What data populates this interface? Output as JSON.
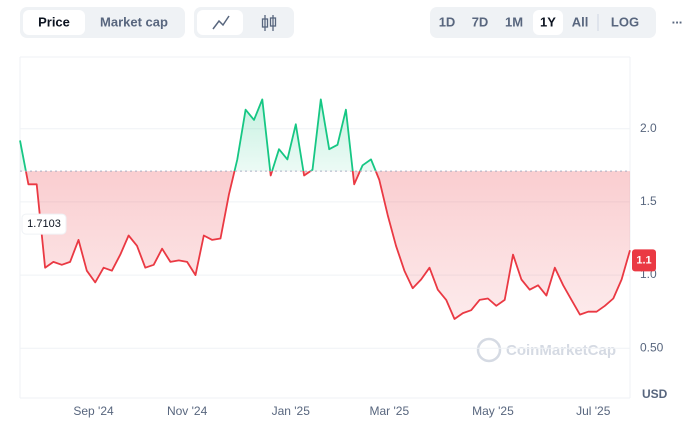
{
  "controls": {
    "view": [
      "Price",
      "Market cap"
    ],
    "ranges": [
      "1D",
      "7D",
      "1M",
      "1Y",
      "All"
    ],
    "scale": "LOG",
    "more": "..."
  },
  "chart_data": {
    "type": "line",
    "currency": "USD",
    "watermark": "CoinMarketCap",
    "baseline": 1.7103,
    "current_price": 1.1,
    "up_color": "#16c784",
    "down_color": "#ea3943",
    "x": [
      0,
      5,
      10,
      15,
      20,
      25,
      30,
      35,
      40,
      45,
      50,
      55,
      60,
      65,
      70,
      75,
      80,
      85,
      90,
      95,
      100,
      105,
      110,
      115,
      120,
      125,
      130,
      135,
      140,
      145,
      150,
      155,
      160,
      165,
      170,
      175,
      180,
      185,
      190,
      195,
      200,
      205,
      210,
      215,
      220,
      225,
      230,
      235,
      240,
      245,
      250,
      255,
      260,
      265,
      270,
      275,
      280,
      285,
      290,
      295,
      300,
      305,
      310,
      315,
      320,
      325,
      330,
      335,
      340,
      345,
      350,
      355,
      360,
      365
    ],
    "series": [
      {
        "name": "Price",
        "values": [
          1.92,
          1.62,
          1.62,
          1.05,
          1.09,
          1.07,
          1.09,
          1.24,
          1.03,
          0.95,
          1.05,
          1.03,
          1.14,
          1.27,
          1.2,
          1.05,
          1.07,
          1.18,
          1.09,
          1.1,
          1.09,
          1.0,
          1.27,
          1.24,
          1.25,
          1.55,
          1.79,
          2.13,
          2.06,
          2.2,
          1.68,
          1.86,
          1.79,
          2.03,
          1.68,
          1.72,
          2.2,
          1.86,
          1.89,
          2.13,
          1.62,
          1.75,
          1.79,
          1.65,
          1.41,
          1.2,
          1.03,
          0.91,
          0.97,
          1.05,
          0.9,
          0.83,
          0.7,
          0.74,
          0.76,
          0.83,
          0.84,
          0.79,
          0.83,
          1.14,
          0.97,
          0.9,
          0.93,
          0.86,
          1.05,
          0.93,
          0.83,
          0.73,
          0.75,
          0.75,
          0.79,
          0.84,
          0.97,
          1.17
        ]
      }
    ],
    "xlim": [
      0,
      365
    ],
    "xticks": [
      {
        "value": 44,
        "label": "Sep '24"
      },
      {
        "value": 100,
        "label": "Nov '24"
      },
      {
        "value": 162,
        "label": "Jan '25"
      },
      {
        "value": 221,
        "label": "Mar '25"
      },
      {
        "value": 283,
        "label": "May '25"
      },
      {
        "value": 343,
        "label": "Jul '25"
      }
    ],
    "ylim": [
      0.16,
      2.49
    ],
    "yticks": [
      {
        "value": 0.5,
        "label": "0.50"
      },
      {
        "value": 1,
        "label": "1.0"
      },
      {
        "value": 1.5,
        "label": "1.5"
      },
      {
        "value": 2,
        "label": "2.0"
      }
    ],
    "grid": true
  }
}
